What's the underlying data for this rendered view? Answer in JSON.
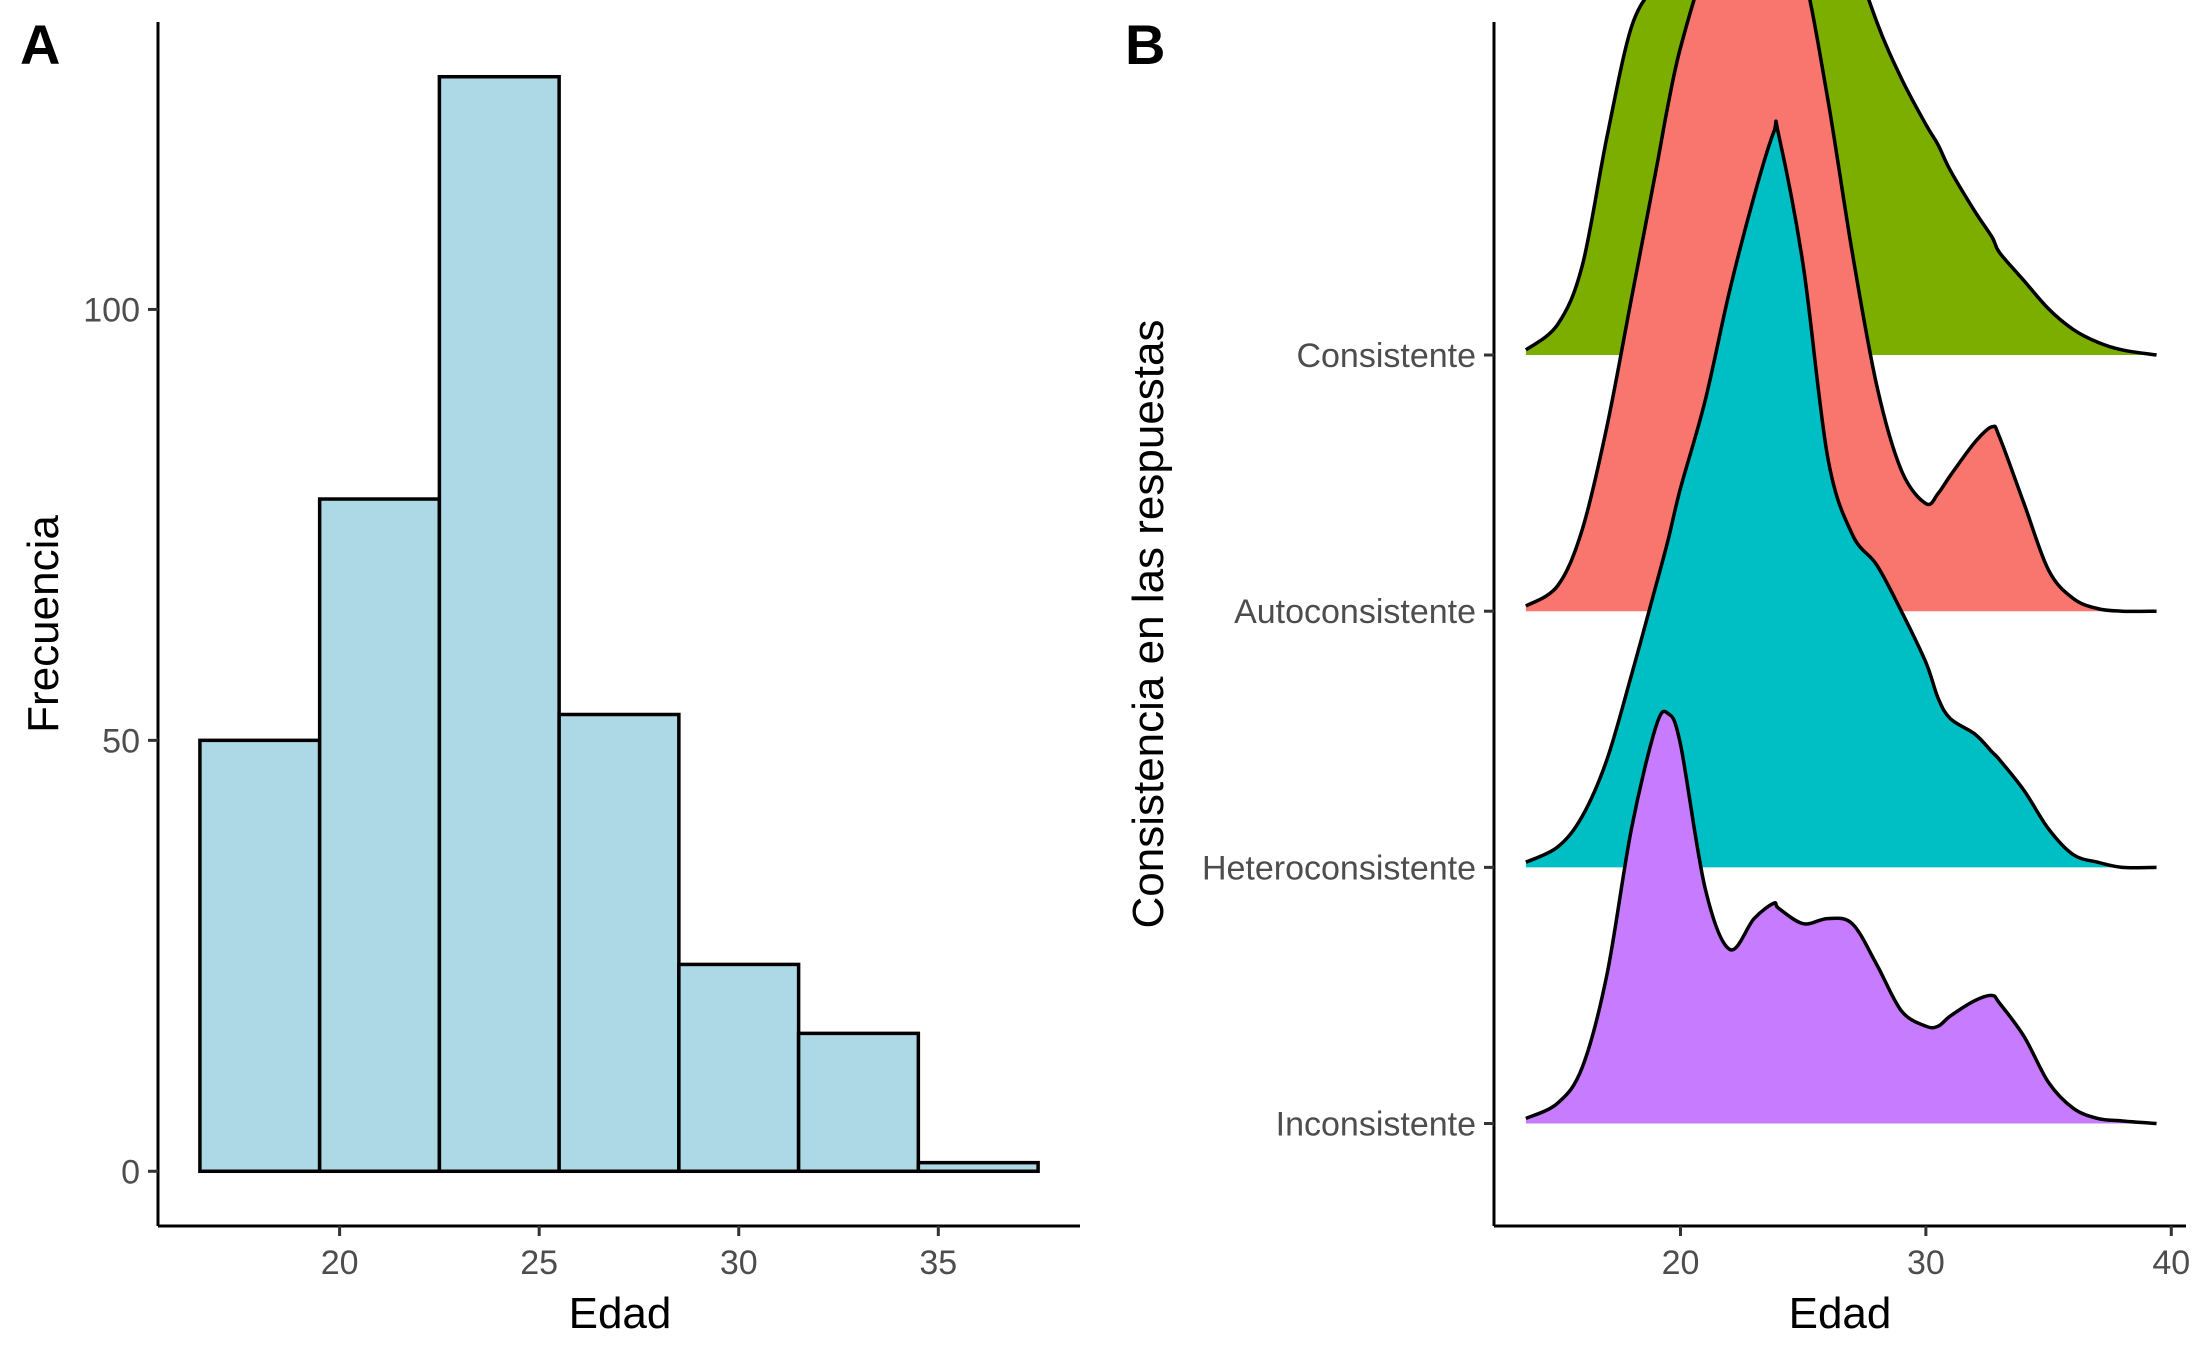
{
  "panels": {
    "a": {
      "tag": "A"
    },
    "b": {
      "tag": "B"
    }
  },
  "chart_data": [
    {
      "type": "bar",
      "panel": "A",
      "xlabel": "Edad",
      "ylabel": "Frecuencia",
      "bin_width": 3,
      "bins": [
        {
          "x0": 16.5,
          "x1": 19.5,
          "count": 50
        },
        {
          "x0": 19.5,
          "x1": 22.5,
          "count": 78
        },
        {
          "x0": 22.5,
          "x1": 25.5,
          "count": 127
        },
        {
          "x0": 25.5,
          "x1": 28.5,
          "count": 53
        },
        {
          "x0": 28.5,
          "x1": 31.5,
          "count": 24
        },
        {
          "x0": 31.5,
          "x1": 34.5,
          "count": 16
        },
        {
          "x0": 34.5,
          "x1": 37.5,
          "count": 1
        }
      ],
      "xticks": [
        20,
        25,
        30,
        35
      ],
      "yticks": [
        0,
        50,
        100
      ],
      "xlim": [
        15.45,
        38.55
      ],
      "ylim": [
        -6.35,
        133.35
      ],
      "bar_color": "#ADD8E6",
      "grid": false
    },
    {
      "type": "area",
      "subtype": "ridgeline",
      "panel": "B",
      "xlabel": "Edad",
      "ylabel": "Consistencia en las respuestas",
      "categories": [
        "Inconsistente",
        "Heteroconsistente",
        "Autoconsistente",
        "Consistente"
      ],
      "x": [
        13.7,
        15,
        16,
        17,
        18,
        19,
        19.5,
        20,
        21,
        22,
        23,
        23.8,
        24,
        25,
        26,
        27,
        28,
        29,
        30,
        30.5,
        31,
        32,
        32.7,
        33,
        34,
        35,
        36,
        37,
        38,
        39.4
      ],
      "series": [
        {
          "name": "Inconsistente",
          "color": "#C77CFF",
          "values": [
            0.02,
            0.08,
            0.22,
            0.58,
            1.15,
            1.55,
            1.6,
            1.48,
            0.92,
            0.68,
            0.8,
            0.86,
            0.84,
            0.78,
            0.8,
            0.78,
            0.62,
            0.44,
            0.38,
            0.38,
            0.42,
            0.48,
            0.5,
            0.47,
            0.34,
            0.16,
            0.06,
            0.02,
            0.01,
            0.0
          ]
        },
        {
          "name": "Heteroconsistente",
          "color": "#00BFC4",
          "values": [
            0.02,
            0.08,
            0.2,
            0.42,
            0.75,
            1.1,
            1.28,
            1.48,
            1.82,
            2.25,
            2.62,
            2.87,
            2.86,
            2.35,
            1.6,
            1.3,
            1.18,
            1.0,
            0.8,
            0.66,
            0.58,
            0.52,
            0.45,
            0.42,
            0.3,
            0.15,
            0.05,
            0.02,
            0.0,
            0.0
          ]
        },
        {
          "name": "Autoconsistente",
          "color": "#F8766D",
          "values": [
            0.02,
            0.1,
            0.32,
            0.72,
            1.22,
            1.72,
            1.98,
            2.2,
            2.52,
            2.76,
            2.81,
            2.79,
            2.72,
            2.5,
            2.0,
            1.4,
            0.88,
            0.55,
            0.42,
            0.46,
            0.53,
            0.66,
            0.72,
            0.68,
            0.42,
            0.16,
            0.05,
            0.01,
            0.0,
            0.0
          ]
        },
        {
          "name": "Consistente",
          "color": "#7CAE00",
          "values": [
            0.02,
            0.12,
            0.35,
            0.85,
            1.28,
            1.45,
            1.52,
            1.62,
            1.96,
            2.36,
            2.66,
            2.75,
            2.75,
            2.5,
            2.05,
            1.6,
            1.3,
            1.08,
            0.9,
            0.82,
            0.72,
            0.56,
            0.46,
            0.4,
            0.29,
            0.18,
            0.1,
            0.05,
            0.02,
            0.0
          ]
        }
      ],
      "xticks": [
        20,
        30,
        40
      ],
      "xlim": [
        12.4,
        40.6
      ],
      "grid": false
    }
  ]
}
